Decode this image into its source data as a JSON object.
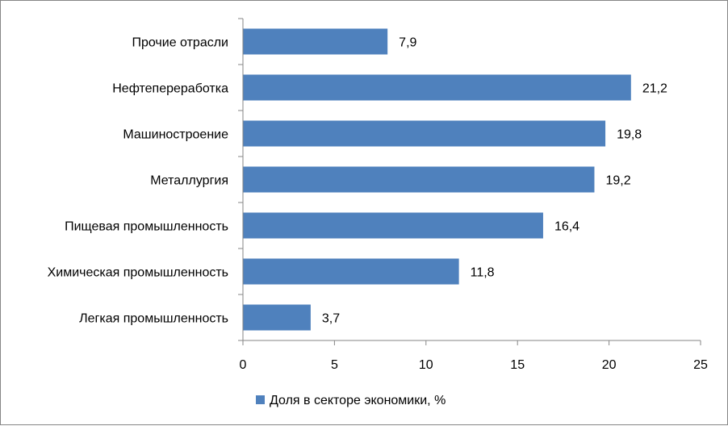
{
  "chart_data": {
    "type": "bar",
    "orientation": "horizontal",
    "categories": [
      "Прочие отрасли",
      "Нефтепереработка",
      "Машиностроение",
      "Металлургия",
      "Пищевая промышленность",
      "Химическая промышленность",
      "Легкая промышленность"
    ],
    "series": [
      {
        "name": "Доля в секторе экономики, %",
        "values": [
          7.9,
          21.2,
          19.8,
          19.2,
          16.4,
          11.8,
          3.7
        ],
        "value_labels": [
          "7,9",
          "21,2",
          "19,8",
          "19,2",
          "16,4",
          "11,8",
          "3,7"
        ],
        "color": "#4F81BD"
      }
    ],
    "xlim": [
      0,
      25
    ],
    "xticks": [
      "0",
      "5",
      "10",
      "15",
      "20",
      "25"
    ],
    "grid": false,
    "legend_position": "bottom"
  }
}
